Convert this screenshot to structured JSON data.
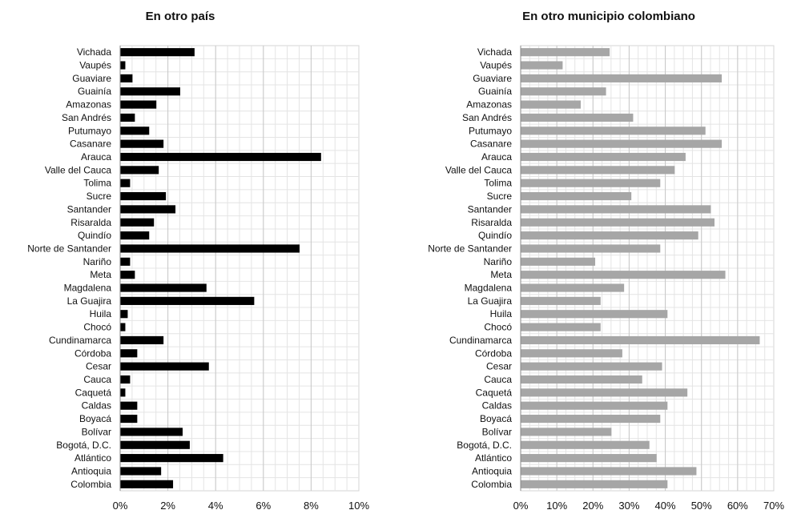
{
  "chart_data": [
    {
      "type": "bar",
      "orientation": "horizontal",
      "title": "En otro país",
      "categories": [
        "Vichada",
        "Vaupés",
        "Guaviare",
        "Guainía",
        "Amazonas",
        "San Andrés",
        "Putumayo",
        "Casanare",
        "Arauca",
        "Valle del Cauca",
        "Tolima",
        "Sucre",
        "Santander",
        "Risaralda",
        "Quindío",
        "Norte de Santander",
        "Nariño",
        "Meta",
        "Magdalena",
        "La Guajira",
        "Huila",
        "Chocó",
        "Cundinamarca",
        "Córdoba",
        "Cesar",
        "Cauca",
        "Caquetá",
        "Caldas",
        "Boyacá",
        "Bolívar",
        "Bogotá, D.C.",
        "Atlántico",
        "Antioquia",
        "Colombia"
      ],
      "values": [
        3.1,
        0.2,
        0.5,
        2.5,
        1.5,
        0.6,
        1.2,
        1.8,
        8.4,
        1.6,
        0.4,
        1.9,
        2.3,
        1.4,
        1.2,
        7.5,
        0.4,
        0.6,
        3.6,
        5.6,
        0.3,
        0.2,
        1.8,
        0.7,
        3.7,
        0.4,
        0.2,
        0.7,
        0.7,
        2.6,
        2.9,
        4.3,
        1.7,
        2.2
      ],
      "xlim": [
        0,
        10
      ],
      "xticks": [
        "0%",
        "2%",
        "4%",
        "6%",
        "8%",
        "10%"
      ],
      "bar_color": "#000000",
      "grid": true
    },
    {
      "type": "bar",
      "orientation": "horizontal",
      "title": "En otro municipio colombiano",
      "categories": [
        "Vichada",
        "Vaupés",
        "Guaviare",
        "Guainía",
        "Amazonas",
        "San Andrés",
        "Putumayo",
        "Casanare",
        "Arauca",
        "Valle del Cauca",
        "Tolima",
        "Sucre",
        "Santander",
        "Risaralda",
        "Quindío",
        "Norte de Santander",
        "Nariño",
        "Meta",
        "Magdalena",
        "La Guajira",
        "Huila",
        "Chocó",
        "Cundinamarca",
        "Córdoba",
        "Cesar",
        "Cauca",
        "Caquetá",
        "Caldas",
        "Boyacá",
        "Bolívar",
        "Bogotá, D.C.",
        "Atlántico",
        "Antioquia",
        "Colombia"
      ],
      "values": [
        24.5,
        11.5,
        55.5,
        23.5,
        16.5,
        31.0,
        51.0,
        55.5,
        45.5,
        42.5,
        38.5,
        30.5,
        52.5,
        53.5,
        49.0,
        38.5,
        20.5,
        56.5,
        28.5,
        22.0,
        40.5,
        22.0,
        66.0,
        28.0,
        39.0,
        33.5,
        46.0,
        40.5,
        38.5,
        25.0,
        35.5,
        37.5,
        48.5,
        40.5
      ],
      "xlim": [
        0,
        70
      ],
      "xticks": [
        "0%",
        "10%",
        "20%",
        "30%",
        "40%",
        "50%",
        "60%",
        "70%"
      ],
      "bar_color": "#a6a6a6",
      "grid": true
    }
  ]
}
